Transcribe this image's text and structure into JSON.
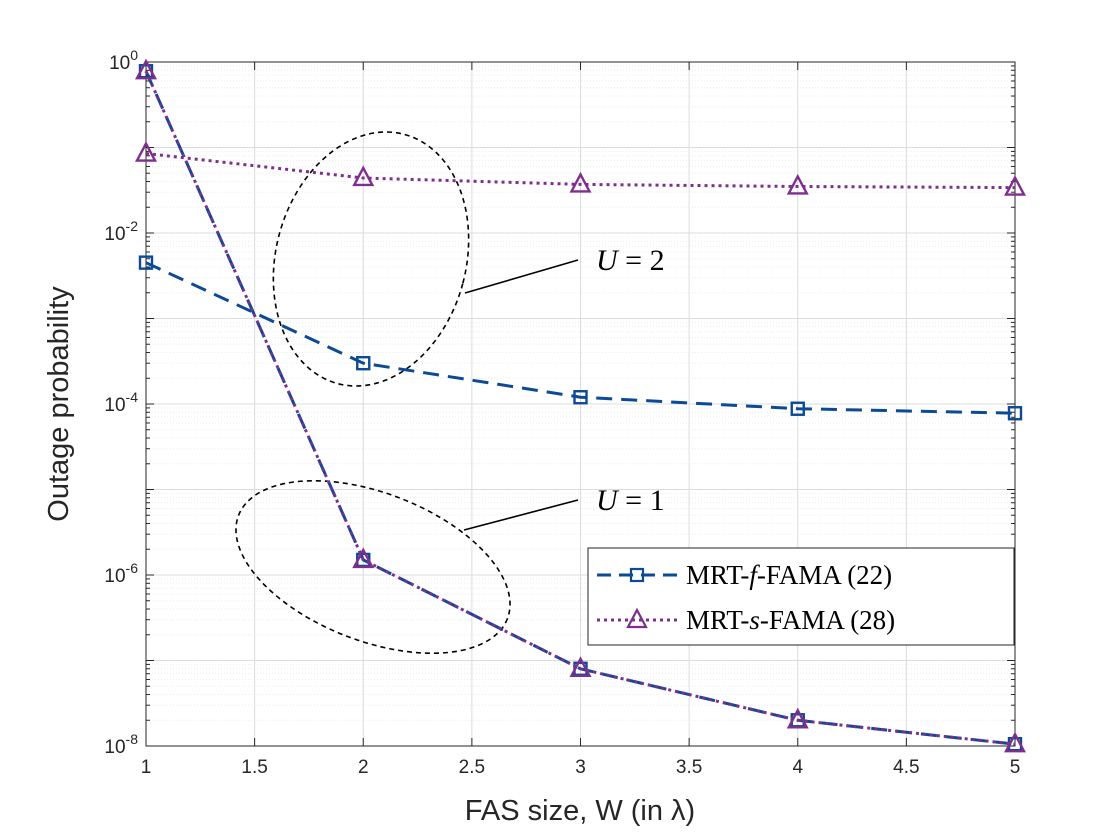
{
  "chart_data": {
    "type": "line",
    "yscale": "log",
    "xlabel": "FAS size, W (in λ)",
    "ylabel": "Outage probability",
    "xlim": [
      1,
      5
    ],
    "ylim_exp": [
      -8,
      0
    ],
    "grid": true,
    "legend_position": "lower-right",
    "x_ticks": [
      "1",
      "1.5",
      "2",
      "2.5",
      "3",
      "3.5",
      "4",
      "4.5",
      "5"
    ],
    "y_ticks": [
      {
        "base": "10",
        "exp": "0"
      },
      {
        "base": "10",
        "exp": "-2"
      },
      {
        "base": "10",
        "exp": "-4"
      },
      {
        "base": "10",
        "exp": "-6"
      },
      {
        "base": "10",
        "exp": "-8"
      }
    ],
    "series": [
      {
        "name": "MRT-f-FAMA (22)",
        "legend_prefix": "MRT-",
        "legend_var": "f",
        "legend_suffix": "-FAMA (22)",
        "color": "#0c4a96",
        "marker": "square",
        "style": "dashed",
        "group": "U=2",
        "x": [
          1,
          2,
          3,
          4,
          5
        ],
        "y": [
          0.0045,
          0.0003,
          0.00012,
          8.8e-05,
          7.8e-05
        ]
      },
      {
        "name": "MRT-s-FAMA (28)",
        "legend_prefix": "MRT-",
        "legend_var": "s",
        "legend_suffix": "-FAMA (28)",
        "color": "#7e2f8e",
        "marker": "triangle",
        "style": "dotted",
        "group": "U=2",
        "x": [
          1,
          2,
          3,
          4,
          5
        ],
        "y": [
          0.085,
          0.044,
          0.037,
          0.035,
          0.034
        ]
      },
      {
        "name": "MRT-f-FAMA (22), U=1",
        "color": "#0c4a96",
        "marker": "square",
        "style": "dashed",
        "group": "U=1",
        "legend": false,
        "x": [
          1,
          2,
          3,
          4,
          5
        ],
        "y": [
          0.78,
          1.5e-06,
          8e-08,
          2e-08,
          1.05e-08
        ]
      },
      {
        "name": "MRT-s-FAMA (28), U=1",
        "color": "#7e2f8e",
        "marker": "triangle",
        "style": "dotted",
        "group": "U=1",
        "legend": false,
        "x": [
          1,
          2,
          3,
          4,
          5
        ],
        "y": [
          0.78,
          1.5e-06,
          8e-08,
          2e-08,
          1.05e-08
        ]
      }
    ],
    "annotations": [
      {
        "var": "U",
        "rest": " = 2"
      },
      {
        "var": "U",
        "rest": " = 1"
      }
    ],
    "colors": {
      "axis": "#262626",
      "grid": "#dcdcdc",
      "minor_grid": "#ececec",
      "ellipse": "#000000"
    }
  }
}
